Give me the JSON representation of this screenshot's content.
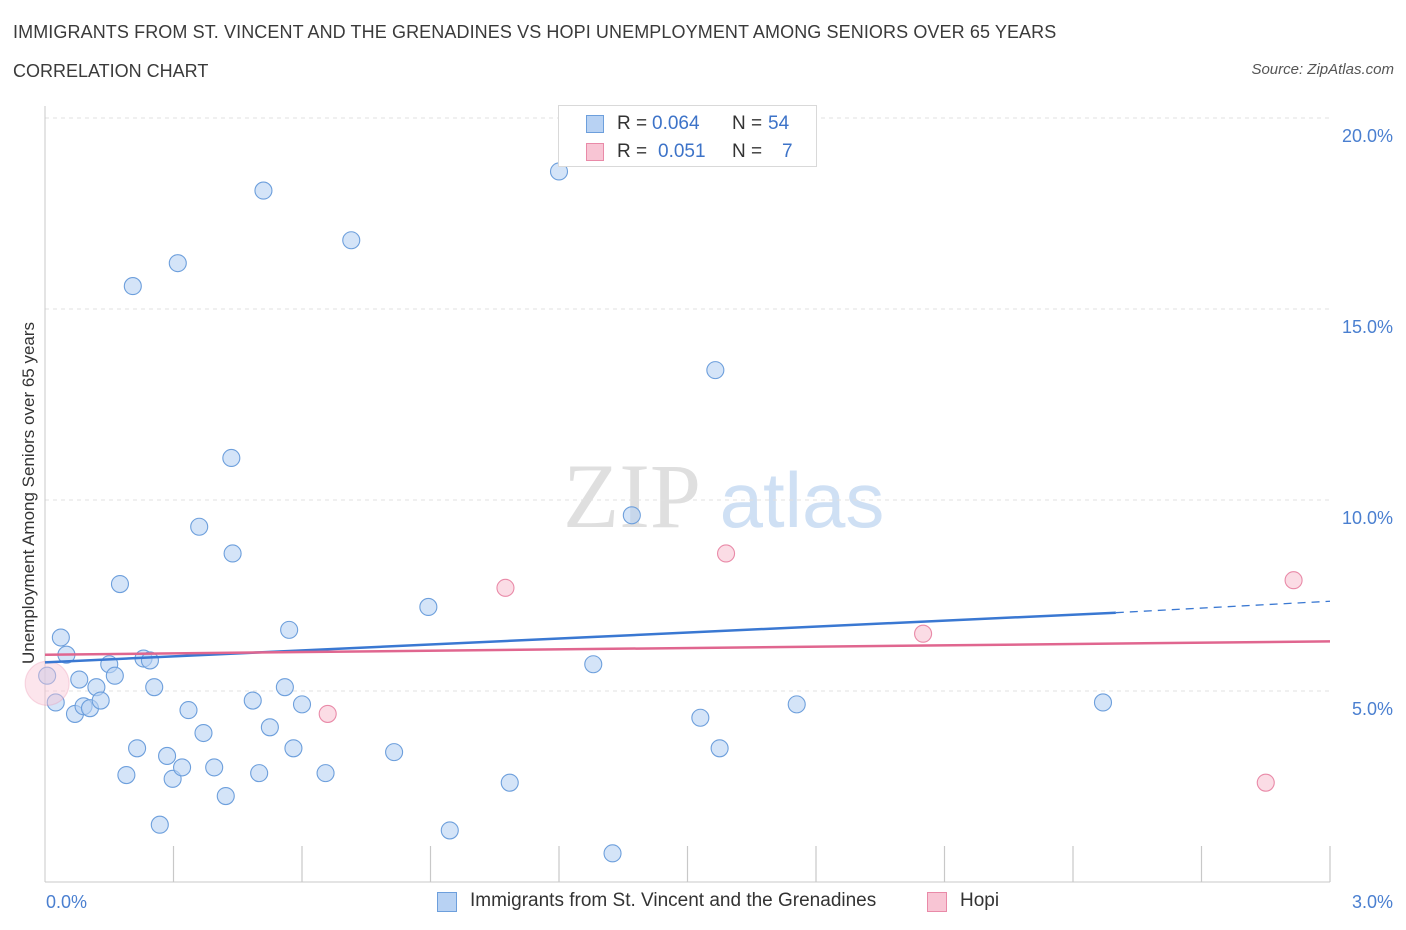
{
  "header": {
    "title": "IMMIGRANTS FROM ST. VINCENT AND THE GRENADINES VS HOPI UNEMPLOYMENT AMONG SENIORS OVER 65 YEARS",
    "subtitle": "CORRELATION CHART",
    "source": "Source: ZipAtlas.com"
  },
  "watermark": {
    "zip": "ZIP",
    "atlas": "atlas"
  },
  "legend": {
    "r_label": "R =",
    "n_label": "N =",
    "series": [
      {
        "r": "0.064",
        "n": "54"
      },
      {
        "r": "0.051",
        "n": "7"
      }
    ]
  },
  "colors": {
    "blue_fill": "#b8d2f3",
    "blue_stroke": "#6d9fdc",
    "blue_line": "#3a78d2",
    "pink_fill": "#f8c5d4",
    "pink_stroke": "#e98aa8",
    "pink_line": "#e0668f",
    "axis_text": "#4a7fd0",
    "grid": "#e0e0e0"
  },
  "chart_data": {
    "type": "scatter",
    "title": "Immigrants from St. Vincent and the Grenadines vs Hopi Unemployment Among Seniors over 65 years",
    "xlabel": "",
    "ylabel": "Unemployment Among Seniors over 65 years",
    "xlim": [
      0,
      3.0
    ],
    "ylim": [
      0,
      20.0
    ],
    "x_tick_labels": [
      "0.0%",
      "3.0%"
    ],
    "y_ticks": [
      5,
      10,
      15,
      20
    ],
    "y_tick_labels": [
      "5.0%",
      "10.0%",
      "15.0%",
      "20.0%"
    ],
    "grid": true,
    "legend_position": "top-center",
    "series": [
      {
        "name": "Immigrants from St. Vincent and the Grenadines",
        "trend": {
          "x0": 0.0,
          "y0": 5.75,
          "x1": 2.5,
          "y1": 7.05,
          "dash_to_x": 3.0,
          "dash_to_y": 7.35
        },
        "points": [
          [
            0.005,
            5.4
          ],
          [
            0.025,
            4.7
          ],
          [
            0.037,
            6.4
          ],
          [
            0.05,
            5.95
          ],
          [
            0.07,
            4.4
          ],
          [
            0.08,
            5.3
          ],
          [
            0.09,
            4.6
          ],
          [
            0.105,
            4.55
          ],
          [
            0.12,
            5.1
          ],
          [
            0.13,
            4.75
          ],
          [
            0.15,
            5.7
          ],
          [
            0.163,
            5.4
          ],
          [
            0.175,
            7.8
          ],
          [
            0.19,
            2.8
          ],
          [
            0.205,
            15.6
          ],
          [
            0.215,
            3.5
          ],
          [
            0.23,
            5.85
          ],
          [
            0.245,
            5.8
          ],
          [
            0.255,
            5.1
          ],
          [
            0.268,
            1.5
          ],
          [
            0.285,
            3.3
          ],
          [
            0.298,
            2.7
          ],
          [
            0.31,
            16.2
          ],
          [
            0.32,
            3.0
          ],
          [
            0.335,
            4.5
          ],
          [
            0.36,
            9.3
          ],
          [
            0.37,
            3.9
          ],
          [
            0.395,
            3.0
          ],
          [
            0.422,
            2.25
          ],
          [
            0.435,
            11.1
          ],
          [
            0.438,
            8.6
          ],
          [
            0.485,
            4.75
          ],
          [
            0.5,
            2.85
          ],
          [
            0.51,
            18.1
          ],
          [
            0.525,
            4.05
          ],
          [
            0.56,
            5.1
          ],
          [
            0.57,
            6.6
          ],
          [
            0.58,
            3.5
          ],
          [
            0.6,
            4.65
          ],
          [
            0.655,
            2.85
          ],
          [
            0.715,
            16.8
          ],
          [
            0.815,
            3.4
          ],
          [
            0.895,
            7.2
          ],
          [
            0.945,
            1.35
          ],
          [
            1.085,
            2.6
          ],
          [
            1.2,
            18.6
          ],
          [
            1.28,
            5.7
          ],
          [
            1.325,
            0.75
          ],
          [
            1.37,
            9.6
          ],
          [
            1.53,
            4.3
          ],
          [
            1.565,
            13.4
          ],
          [
            1.575,
            3.5
          ],
          [
            1.755,
            4.65
          ],
          [
            2.47,
            4.7
          ]
        ]
      },
      {
        "name": "Hopi",
        "trend": {
          "x0": 0.0,
          "y0": 5.95,
          "x1": 3.0,
          "y1": 6.3
        },
        "points": [
          [
            0.005,
            5.2
          ],
          [
            0.66,
            4.4
          ],
          [
            1.075,
            7.7
          ],
          [
            1.59,
            8.6
          ],
          [
            2.05,
            6.5
          ],
          [
            2.85,
            2.6
          ],
          [
            2.915,
            7.9
          ]
        ]
      }
    ]
  }
}
